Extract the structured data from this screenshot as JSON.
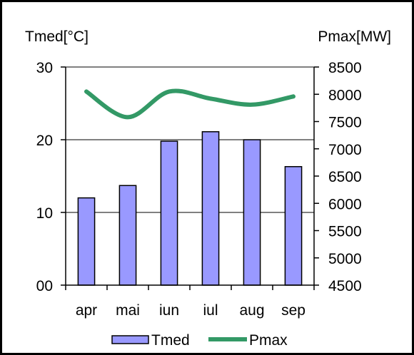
{
  "chart_data": {
    "type": "bar",
    "categories": [
      "apr",
      "mai",
      "iun",
      "iul",
      "aug",
      "sep"
    ],
    "series": [
      {
        "name": "Tmed",
        "type": "bar",
        "axis": "left",
        "color": "#9999ff",
        "values": [
          12,
          13.7,
          19.8,
          21.1,
          20,
          16.3
        ]
      },
      {
        "name": "Pmax",
        "type": "line",
        "axis": "right",
        "color": "#339966",
        "smooth": true,
        "values": [
          8050,
          7580,
          8050,
          7920,
          7810,
          7960
        ]
      }
    ],
    "left_axis": {
      "label": "Tmed[°C]",
      "range": [
        0,
        30
      ],
      "ticks": [
        0,
        10,
        20,
        30
      ],
      "tick_labels": [
        "00",
        "10",
        "20",
        "30"
      ]
    },
    "right_axis": {
      "label": "Pmax[MW]",
      "range": [
        4500,
        8500
      ],
      "ticks": [
        4500,
        5000,
        5500,
        6000,
        6500,
        7000,
        7500,
        8000,
        8500
      ],
      "tick_labels": [
        "4500",
        "5000",
        "5500",
        "6000",
        "6500",
        "7000",
        "7500",
        "8000",
        "8500"
      ]
    },
    "gridlines": "horizontal-major",
    "legend": {
      "position": "bottom",
      "entries": [
        "Tmed",
        "Pmax"
      ]
    }
  }
}
